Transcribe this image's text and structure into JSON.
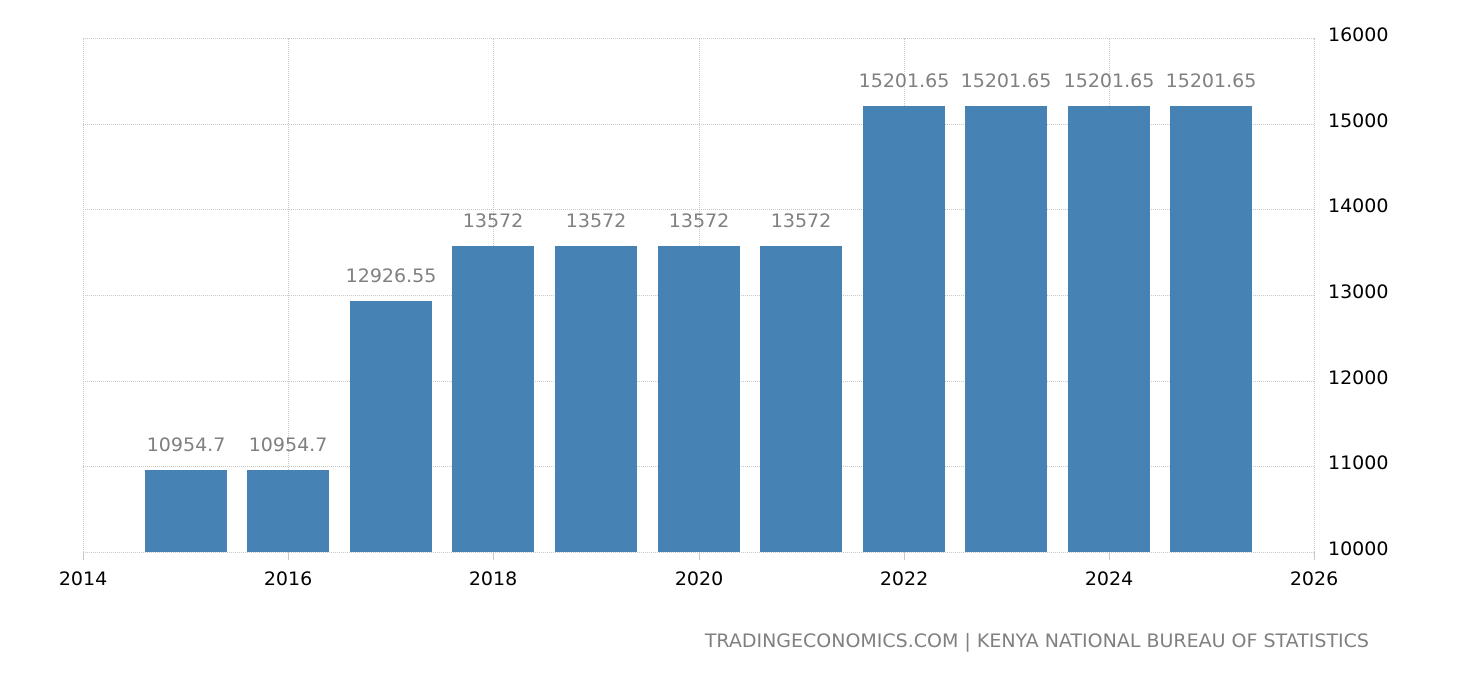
{
  "chart_data": {
    "type": "bar",
    "title": "",
    "xlabel": "",
    "ylabel": "",
    "categories": [
      "2015",
      "2016",
      "2017",
      "2018",
      "2019",
      "2020",
      "2021",
      "2022",
      "2023",
      "2024",
      "2025"
    ],
    "values": [
      10954.7,
      10954.7,
      12926.55,
      13572,
      13572,
      13572,
      13572,
      15201.65,
      15201.65,
      15201.65,
      15201.65
    ],
    "value_labels": [
      "10954.7",
      "10954.7",
      "12926.55",
      "13572",
      "13572",
      "13572",
      "13572",
      "15201.65",
      "15201.65",
      "15201.65",
      "15201.65"
    ],
    "ylim": [
      10000,
      16000
    ],
    "xlim": [
      2014,
      2026
    ],
    "y_ticks": [
      "10000",
      "11000",
      "12000",
      "13000",
      "14000",
      "15000",
      "16000"
    ],
    "x_ticks": [
      "2014",
      "2016",
      "2018",
      "2020",
      "2022",
      "2024",
      "2026"
    ],
    "y_axis_position": "right",
    "grid": true,
    "legend": null,
    "bar_color": "#4682b4",
    "label_color": "#808080"
  },
  "source": {
    "text": "TRADINGECONOMICS.COM | KENYA NATIONAL BUREAU OF STATISTICS"
  }
}
